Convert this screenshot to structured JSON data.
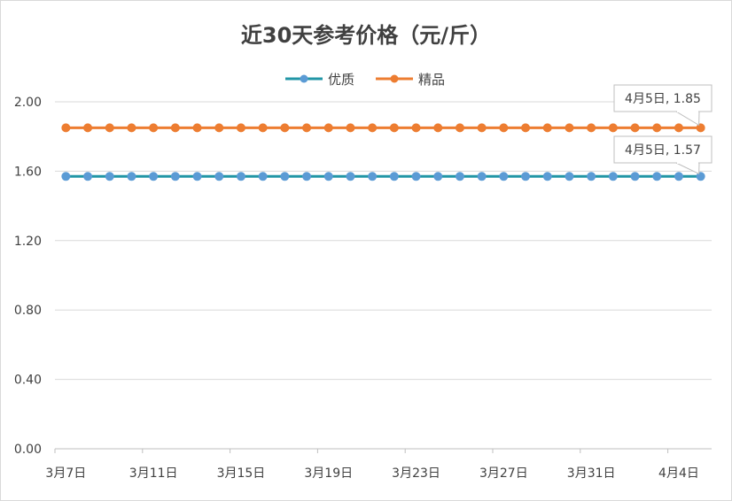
{
  "chart_data": {
    "type": "line",
    "title": "近30天参考价格（元/斤）",
    "xlabel": "",
    "ylabel": "",
    "ylim": [
      0,
      2
    ],
    "y_ticks": [
      "0.00",
      "0.40",
      "0.80",
      "1.20",
      "1.60",
      "2.00"
    ],
    "x": [
      "3月7日",
      "3月8日",
      "3月9日",
      "3月10日",
      "3月11日",
      "3月12日",
      "3月13日",
      "3月14日",
      "3月15日",
      "3月16日",
      "3月17日",
      "3月18日",
      "3月19日",
      "3月20日",
      "3月21日",
      "3月22日",
      "3月23日",
      "3月24日",
      "3月25日",
      "3月26日",
      "3月27日",
      "3月28日",
      "3月29日",
      "3月30日",
      "3月31日",
      "4月1日",
      "4月2日",
      "4月3日",
      "4月4日",
      "4月5日"
    ],
    "x_tick_labels": [
      "3月7日",
      "3月11日",
      "3月15日",
      "3月19日",
      "3月23日",
      "3月27日",
      "3月31日",
      "4月4日"
    ],
    "grid": true,
    "legend_position": "top-center",
    "series": [
      {
        "name": "优质",
        "color": "#2196a6",
        "marker_color": "#5b9bd5",
        "values": [
          1.57,
          1.57,
          1.57,
          1.57,
          1.57,
          1.57,
          1.57,
          1.57,
          1.57,
          1.57,
          1.57,
          1.57,
          1.57,
          1.57,
          1.57,
          1.57,
          1.57,
          1.57,
          1.57,
          1.57,
          1.57,
          1.57,
          1.57,
          1.57,
          1.57,
          1.57,
          1.57,
          1.57,
          1.57,
          1.57
        ]
      },
      {
        "name": "精品",
        "color": "#ed7d31",
        "marker_color": "#ed7d31",
        "values": [
          1.85,
          1.85,
          1.85,
          1.85,
          1.85,
          1.85,
          1.85,
          1.85,
          1.85,
          1.85,
          1.85,
          1.85,
          1.85,
          1.85,
          1.85,
          1.85,
          1.85,
          1.85,
          1.85,
          1.85,
          1.85,
          1.85,
          1.85,
          1.85,
          1.85,
          1.85,
          1.85,
          1.85,
          1.85,
          1.85
        ]
      }
    ],
    "annotations": [
      {
        "series": "精品",
        "text": "4月5日, 1.85"
      },
      {
        "series": "优质",
        "text": "4月5日, 1.57"
      }
    ]
  }
}
